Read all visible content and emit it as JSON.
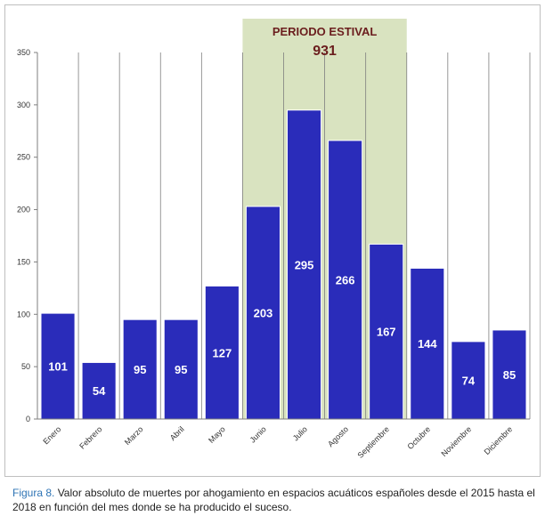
{
  "chart_data": {
    "type": "bar",
    "categories": [
      "Enero",
      "Febrero",
      "Marzo",
      "Abril",
      "Mayo",
      "Junio",
      "Julio",
      "Agosto",
      "Septiembre",
      "Octubre",
      "Noviembre",
      "Diciembre"
    ],
    "values": [
      101,
      54,
      95,
      95,
      127,
      203,
      295,
      266,
      167,
      144,
      74,
      85
    ],
    "data_labels": [
      "101",
      "54",
      "95",
      "95",
      "127",
      "203",
      "295",
      "266",
      "167",
      "144",
      "74",
      "85"
    ],
    "ylim": [
      0,
      350
    ],
    "yticks": [
      "0",
      "50",
      "100",
      "150",
      "200",
      "250",
      "300",
      "350"
    ],
    "grid": "vertical lines between categories",
    "bar_color": "#2a2cba",
    "bar_border": "#ffffff",
    "highlight": {
      "label": "PERIODO ESTIVAL",
      "total": "931",
      "from_category": "Junio",
      "to_category": "Septiembre",
      "color": "#d9e3c0",
      "text_color": "#6b1e1e"
    }
  },
  "caption": {
    "figure_label": "Figura 8.",
    "text": " Valor absoluto de muertes por ahogamiento en espacios acuáticos españoles desde el 2015 hasta el 2018 en función del mes donde se ha producido el suceso."
  }
}
